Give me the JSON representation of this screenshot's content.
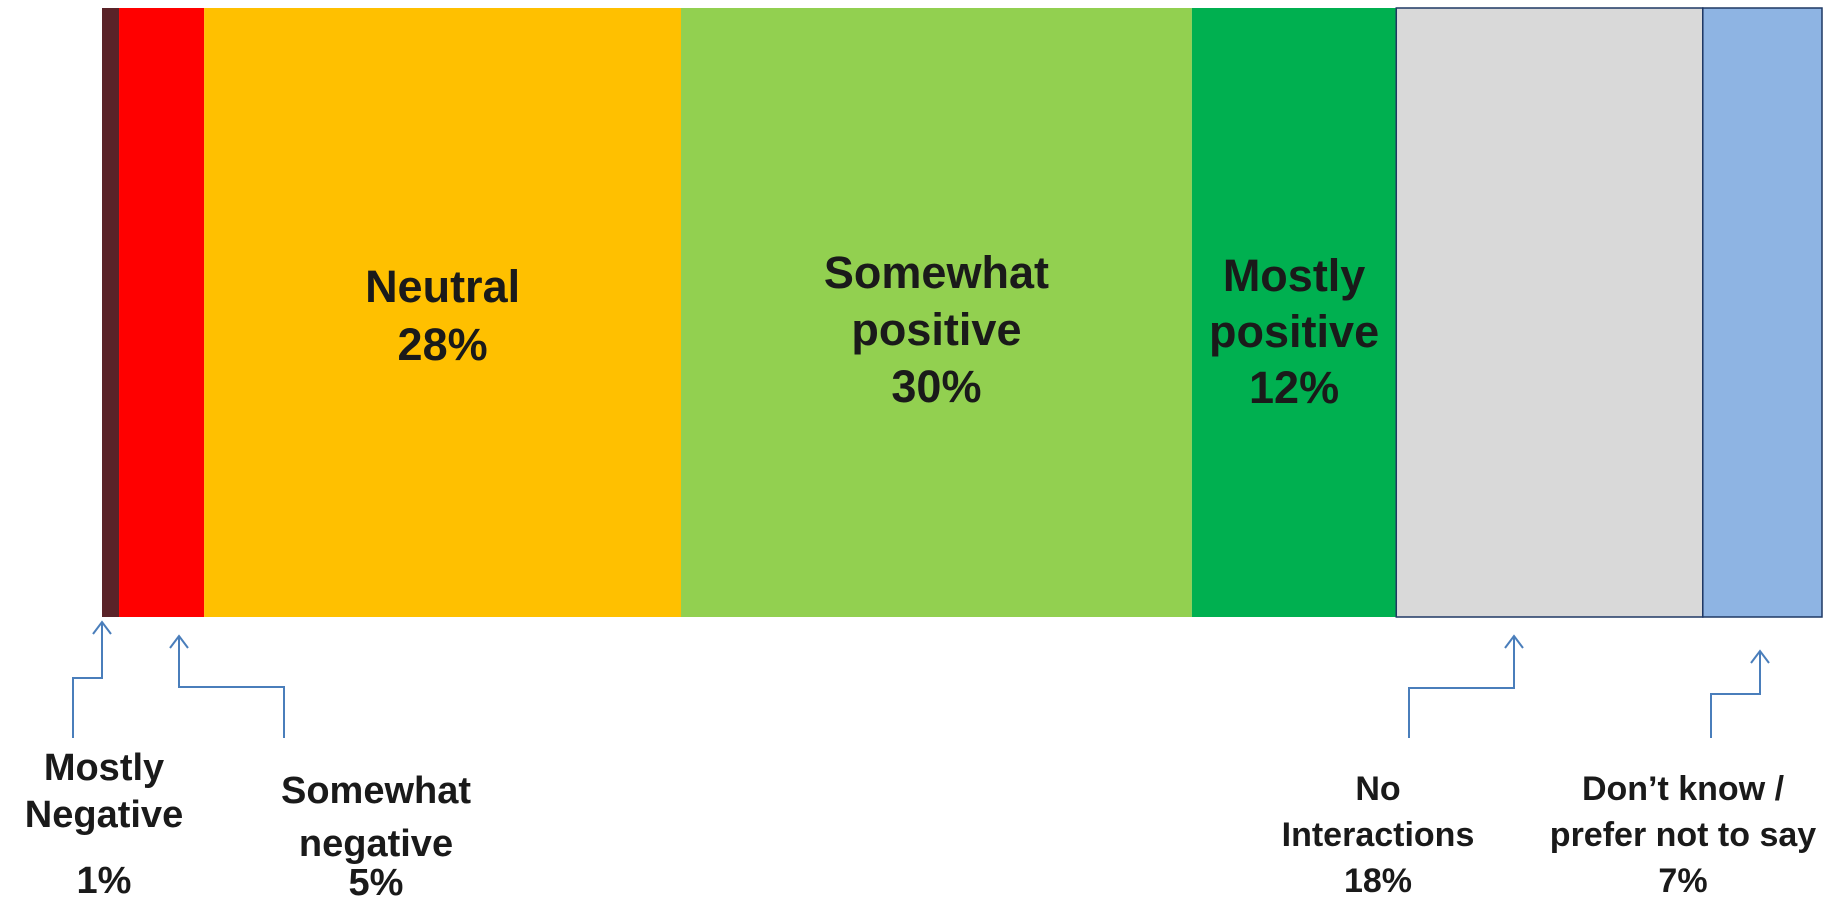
{
  "chart_data": {
    "type": "bar",
    "orientation": "horizontal-stacked",
    "unit": "%",
    "segments": [
      {
        "key": "mostly-negative",
        "lines": [
          "Mostly",
          "Negative"
        ],
        "value": 1,
        "value_label": "1%",
        "color": "#5a2328",
        "label_position": "outside"
      },
      {
        "key": "somewhat-negative",
        "lines": [
          "Somewhat",
          "negative"
        ],
        "value": 5,
        "value_label": "5%",
        "color": "#ff0000",
        "label_position": "outside"
      },
      {
        "key": "neutral",
        "lines": [
          "Neutral"
        ],
        "value": 28,
        "value_label": "28%",
        "color": "#ffc000",
        "label_position": "inside"
      },
      {
        "key": "somewhat-positive",
        "lines": [
          "Somewhat",
          "positive"
        ],
        "value": 30,
        "value_label": "30%",
        "color": "#92d050",
        "label_position": "inside"
      },
      {
        "key": "mostly-positive",
        "lines": [
          "Mostly",
          "positive"
        ],
        "value": 12,
        "value_label": "12%",
        "color": "#00b050",
        "label_position": "inside"
      },
      {
        "key": "no-interactions",
        "lines": [
          "No",
          "Interactions"
        ],
        "value": 18,
        "value_label": "18%",
        "color": "#d9d9d9",
        "label_position": "outside",
        "outlined": true
      },
      {
        "key": "dont-know",
        "lines": [
          "Don’t know /",
          "prefer not to say"
        ],
        "value": 7,
        "value_label": "7%",
        "color": "#8eb4e3",
        "label_position": "outside",
        "outlined": true
      }
    ],
    "title": "",
    "xlabel": "",
    "ylabel": "",
    "grid": false,
    "legend": "none"
  }
}
